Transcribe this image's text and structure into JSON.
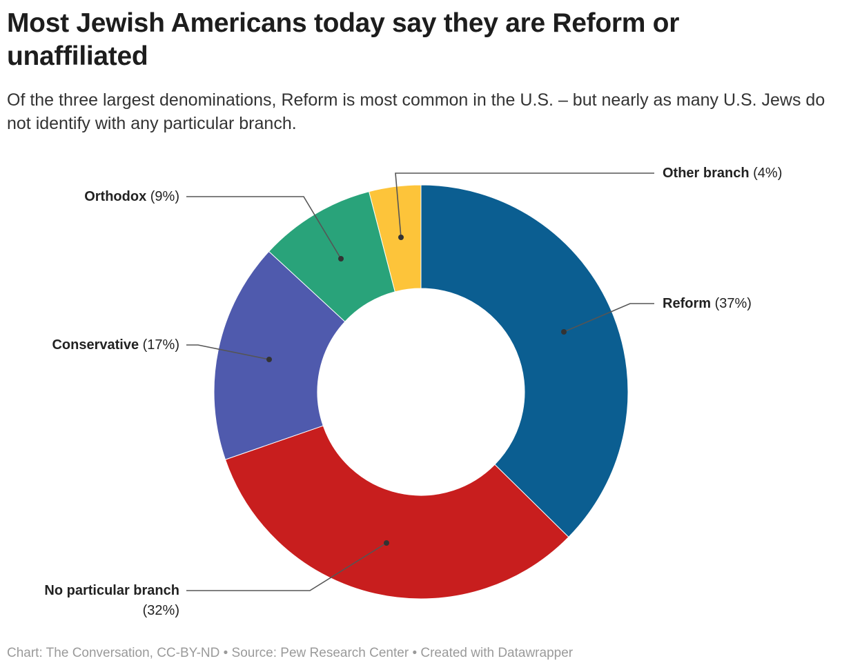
{
  "title": "Most Jewish Americans today say they are Reform or unaffiliated",
  "subtitle": "Of the three largest denominations, Reform is most common in the U.S. – but nearly as many U.S. Jews do not identify with any particular branch.",
  "footer": "Chart: The Conversation, CC-BY-ND • Source: Pew Research Center • Created with Datawrapper",
  "chart_data": {
    "type": "pie",
    "variant": "donut",
    "start": "top, clockwise",
    "slices": [
      {
        "name": "Reform",
        "value": 37,
        "label_value": "(37%)",
        "color": "#0b5e91"
      },
      {
        "name": "No particular branch",
        "value": 32,
        "label_value": "(32%)",
        "color": "#c81e1e"
      },
      {
        "name": "Conservative",
        "value": 17,
        "label_value": "(17%)",
        "color": "#4f5aad"
      },
      {
        "name": "Orthodox",
        "value": 9,
        "label_value": "(9%)",
        "color": "#29a37a"
      },
      {
        "name": "Other branch",
        "value": 4,
        "label_value": "(4%)",
        "color": "#fdc43a"
      }
    ]
  }
}
